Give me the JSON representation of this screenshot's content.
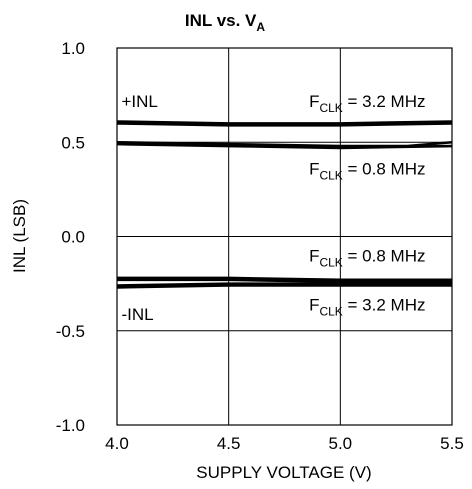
{
  "chart_data": {
    "type": "line",
    "title": {
      "main": "INL vs. V",
      "sub": "A"
    },
    "xlabel": "SUPPLY VOLTAGE (V)",
    "ylabel": "INL (LSB)",
    "xlim": [
      4.0,
      5.5
    ],
    "ylim": [
      -1.0,
      1.0
    ],
    "x_ticks": [
      "4.0",
      "4.5",
      "5.0",
      "5.5"
    ],
    "y_ticks": [
      "1.0",
      "0.5",
      "0.0",
      "-0.5",
      "-1.0"
    ],
    "grid": true,
    "series": [
      {
        "x": [
          4.0,
          4.5,
          5.0,
          5.5
        ],
        "y": [
          0.61,
          0.6,
          0.6,
          0.61
        ]
      },
      {
        "x": [
          4.0,
          4.5,
          5.0,
          5.5
        ],
        "y": [
          0.6,
          0.59,
          0.59,
          0.6
        ]
      },
      {
        "x": [
          4.0,
          4.5,
          5.0,
          5.3,
          5.5
        ],
        "y": [
          0.5,
          0.49,
          0.48,
          0.48,
          0.5
        ]
      },
      {
        "x": [
          4.0,
          4.5,
          5.0,
          5.5
        ],
        "y": [
          0.49,
          0.48,
          0.47,
          0.48
        ]
      },
      {
        "x": [
          4.0,
          4.5,
          5.0,
          5.5
        ],
        "y": [
          -0.22,
          -0.22,
          -0.23,
          -0.23
        ]
      },
      {
        "x": [
          4.0,
          4.5,
          5.0,
          5.5
        ],
        "y": [
          -0.23,
          -0.23,
          -0.24,
          -0.24
        ]
      },
      {
        "x": [
          4.0,
          4.5,
          5.0,
          5.5
        ],
        "y": [
          -0.26,
          -0.25,
          -0.25,
          -0.25
        ]
      },
      {
        "x": [
          4.0,
          4.5,
          5.0,
          5.5
        ],
        "y": [
          -0.27,
          -0.26,
          -0.26,
          -0.26
        ]
      }
    ],
    "annotations": [
      {
        "key": "plus_inl",
        "text": "+INL",
        "x": 4.02,
        "y": 0.72
      },
      {
        "key": "fclk_top_upper",
        "text": "F",
        "sub": "CLK",
        "rest": " = 3.2 MHz",
        "x": 4.86,
        "y": 0.72
      },
      {
        "key": "fclk_top_lower",
        "text": "F",
        "sub": "CLK",
        "rest": " = 0.8 MHz",
        "x": 4.86,
        "y": 0.36
      },
      {
        "key": "fclk_bot_upper",
        "text": "F",
        "sub": "CLK",
        "rest": " = 0.8 MHz",
        "x": 4.86,
        "y": -0.1
      },
      {
        "key": "minus_inl",
        "text": "-INL",
        "x": 4.02,
        "y": -0.41
      },
      {
        "key": "fclk_bot_lower",
        "text": "F",
        "sub": "CLK",
        "rest": " = 3.2 MHz",
        "x": 4.86,
        "y": -0.36
      }
    ]
  }
}
